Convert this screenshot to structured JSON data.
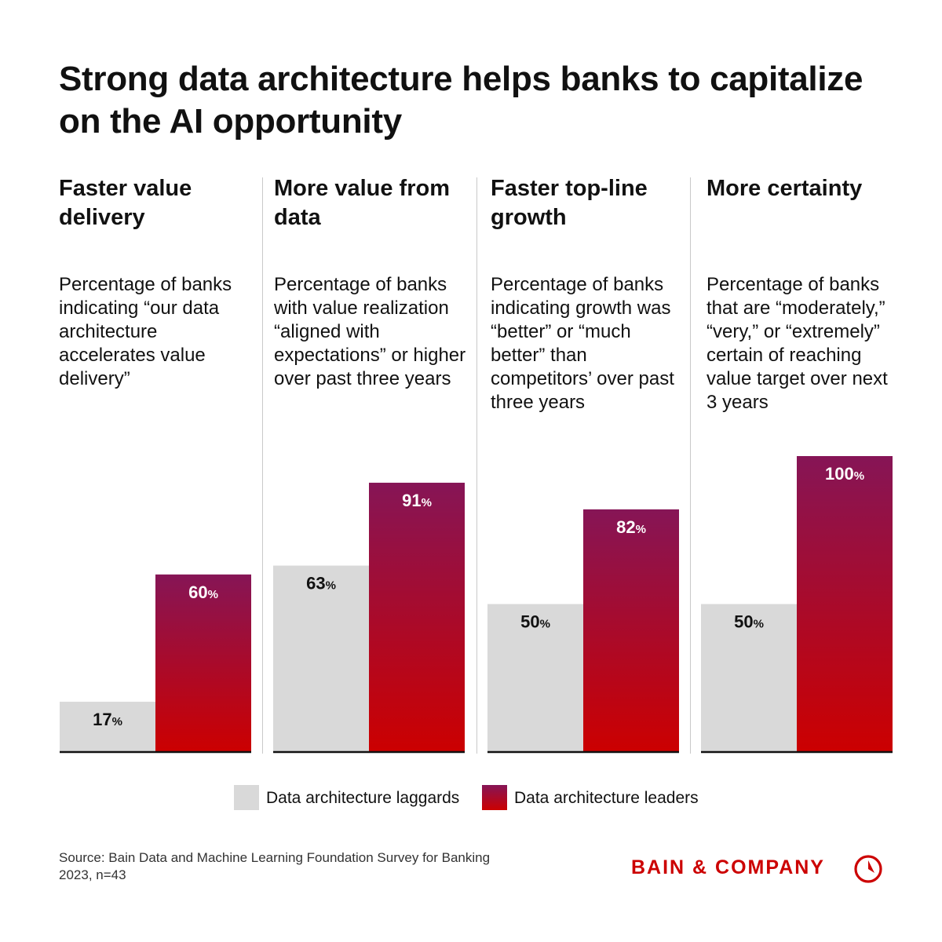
{
  "title": "Strong data architecture helps banks to capitalize on the AI opportunity",
  "colors": {
    "laggard": "#d9d9d9",
    "leader_top": "#861556",
    "leader_bottom": "#cc0000",
    "brand": "#cc0000"
  },
  "panels": [
    {
      "heading": "Faster value delivery",
      "description": "Percentage of banks indicating “our data architecture accelerates value delivery”"
    },
    {
      "heading": "More value from data",
      "description": "Percentage of banks with value realization “aligned with expectations” or higher over past three years"
    },
    {
      "heading": "Faster top-line growth",
      "description": "Percentage of banks indicating growth was “better” or “much better” than competitors’ over past three years"
    },
    {
      "heading": "More certainty",
      "description": "Percentage of banks that are “moderately,” “very,” or “extremely” certain of reaching value target over next 3 years"
    }
  ],
  "chart_data": {
    "type": "bar",
    "categories": [
      "Faster value delivery",
      "More value from data",
      "Faster top-line growth",
      "More certainty"
    ],
    "series": [
      {
        "name": "Data architecture laggards",
        "values": [
          17,
          63,
          50,
          50
        ],
        "labels": [
          "17",
          "63",
          "50",
          "50"
        ]
      },
      {
        "name": "Data architecture leaders",
        "values": [
          60,
          91,
          82,
          100
        ],
        "labels": [
          "60",
          "91",
          "82",
          "100"
        ]
      }
    ],
    "unit": "%",
    "ylim": [
      0,
      100
    ],
    "grid": false,
    "legend": "bottom-center"
  },
  "legend": {
    "laggards": "Data architecture laggards",
    "leaders": "Data architecture leaders"
  },
  "source": "Source: Bain Data and Machine Learning Foundation Survey for Banking 2023, n=43",
  "brand": "BAIN & COMPANY"
}
